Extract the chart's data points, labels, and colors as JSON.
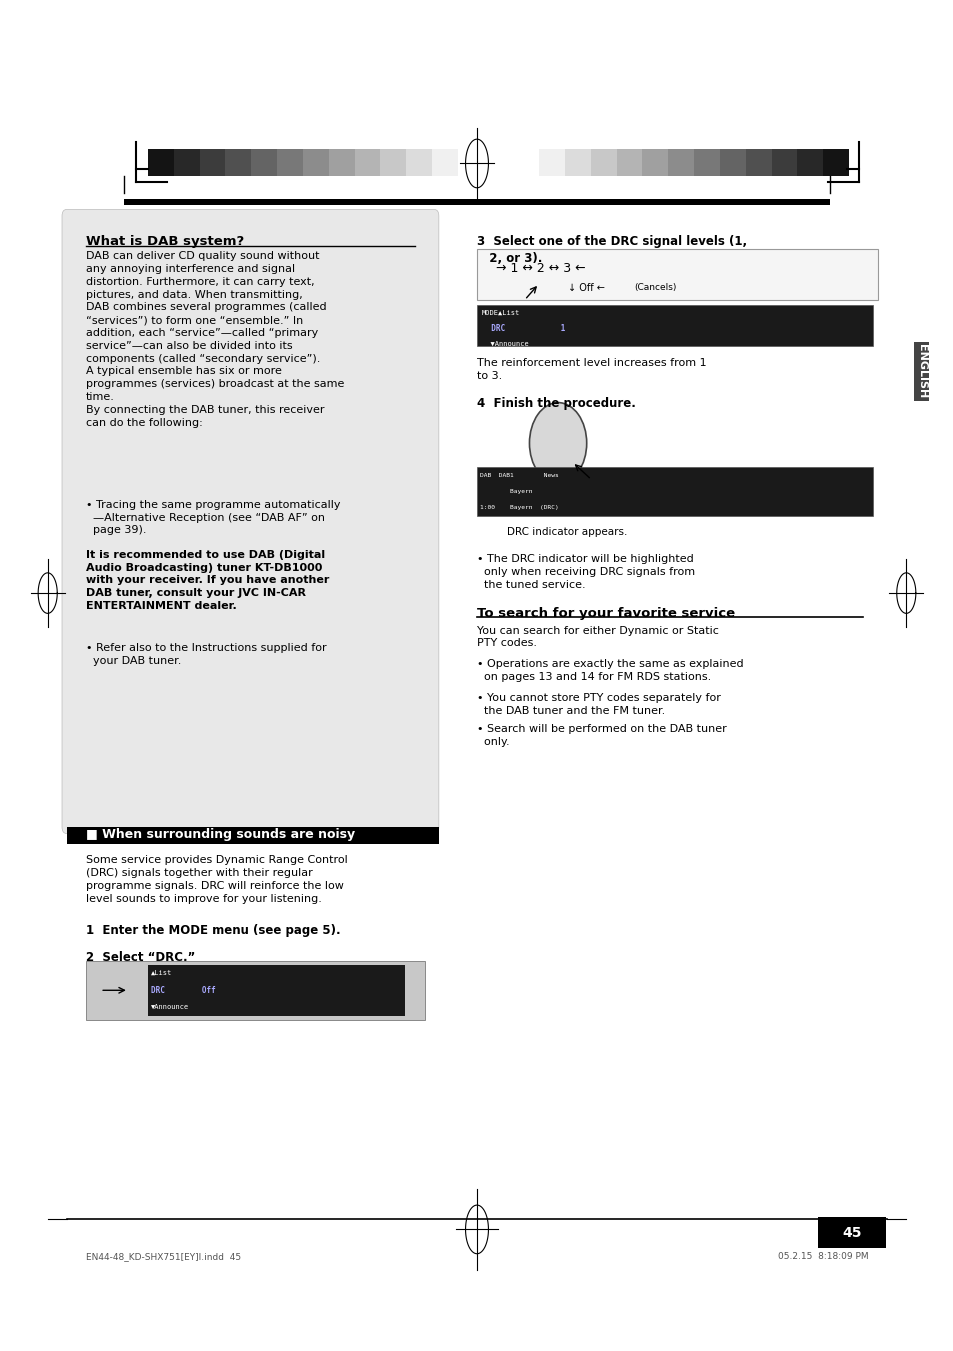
{
  "page_bg": "#ffffff",
  "sidebar_label": "ENGLISH",
  "page_number": "45",
  "footer_left": "EN44-48_KD-SHX751[EY]I.indd  45",
  "footer_right": "05.2.15  8:18:09 PM",
  "section1_title": "What is DAB system?",
  "section1_body": "DAB can deliver CD quality sound without\nany annoying interference and signal\ndistortion. Furthermore, it can carry text,\npictures, and data. When transmitting,\nDAB combines several programmes (called\n“services”) to form one “ensemble.” In\naddition, each “service”—called “primary\nservice”—can also be divided into its\ncomponents (called “secondary service”).\nA typical ensemble has six or more\nprogrammes (services) broadcast at the same\ntime.\nBy connecting the DAB tuner, this receiver\ncan do the following:",
  "section1_bullet1": "• Tracing the same programme automatically\n  —Alternative Reception (see “DAB AF” on\n  page 39).",
  "section1_bold": "It is recommended to use DAB (Digital\nAudio Broadcasting) tuner KT-DB1000\nwith your receiver. If you have another\nDAB tuner, consult your JVC IN-CAR\nENTERTAINMENT dealer.",
  "section1_bullet2": "• Refer also to the Instructions supplied for\n  your DAB tuner.",
  "section2_title": "■ When surrounding sounds are noisy",
  "section2_body": "Some service provides Dynamic Range Control\n(DRC) signals together with their regular\nprogramme signals. DRC will reinforce the low\nlevel sounds to improve for your listening.",
  "step1_text": "1  Enter the MODE menu (see page 5).",
  "step2_text": "2  Select “DRC.”",
  "step3_text": "3  Select one of the DRC signal levels (1,\n   2, or 3).",
  "step3_note": "The reinforcement level increases from 1\nto 3.",
  "step4_text": "4  Finish the procedure.",
  "step4_note": "DRC indicator appears.",
  "step4_bullet": "• The DRC indicator will be highlighted\n  only when receiving DRC signals from\n  the tuned service.",
  "section3_title": "To search for your favorite service",
  "section3_body": "You can search for either Dynamic or Static\nPTY codes.",
  "section3_bullet1": "• Operations are exactly the same as explained\n  on pages 13 and 14 for FM RDS stations.",
  "section3_bullet2": "• You cannot store PTY codes separately for\n  the DAB tuner and the FM tuner.",
  "section3_bullet3": "• Search will be performed on the DAB tuner\n  only."
}
